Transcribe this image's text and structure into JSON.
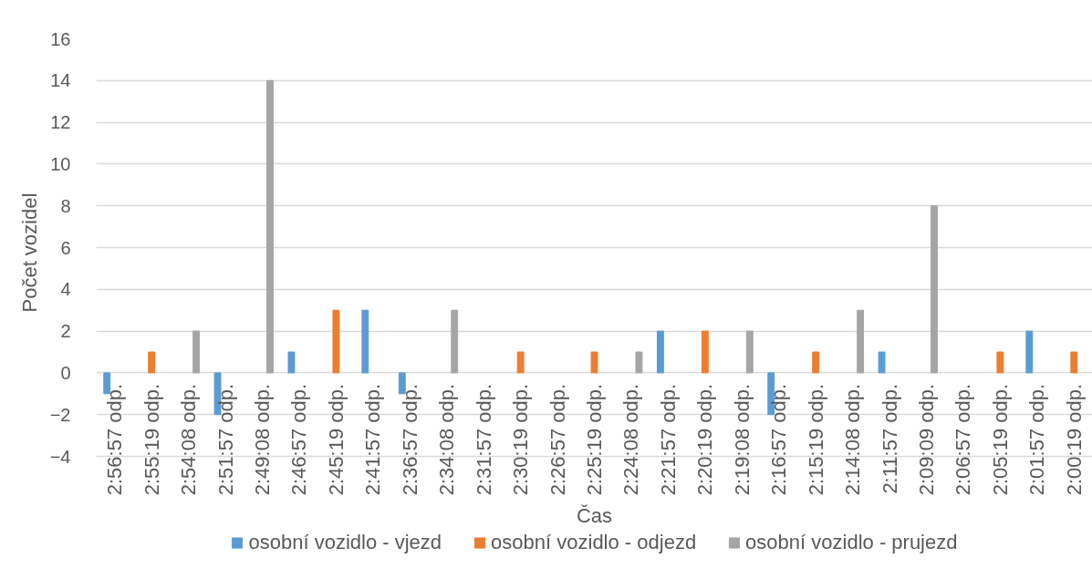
{
  "chart_data": {
    "type": "bar",
    "xlabel": "Čas",
    "ylabel": "Počet vozidel",
    "categories": [
      "2:56:57 odp.",
      "2:55:19 odp.",
      "2:54:08 odp.",
      "2:51:57 odp.",
      "2:49:08 odp.",
      "2:46:57 odp.",
      "2:45:19 odp.",
      "2:41:57 odp.",
      "2:36:57 odp.",
      "2:34:08 odp.",
      "2:31:57 odp.",
      "2:30:19 odp.",
      "2:26:57 odp.",
      "2:25:19 odp.",
      "2:24:08 odp.",
      "2:21:57 odp.",
      "2:20:19 odp.",
      "2:19:08 odp.",
      "2:16:57 odp.",
      "2:15:19 odp.",
      "2:14:08 odp.",
      "2:11:57 odp.",
      "2:09:09 odp.",
      "2:06:57 odp.",
      "2:05:19 odp.",
      "2:01:57 odp.",
      "2:00:19 odp."
    ],
    "series": [
      {
        "name": "osobní vozidlo - vjezd",
        "color": "#5b9bd5",
        "values": [
          -1,
          null,
          null,
          -2,
          null,
          1,
          null,
          3,
          -1,
          null,
          null,
          null,
          null,
          null,
          null,
          2,
          null,
          null,
          -2,
          null,
          null,
          1,
          null,
          null,
          null,
          2,
          null
        ]
      },
      {
        "name": "osobní vozidlo - odjezd",
        "color": "#ed7d31",
        "values": [
          null,
          1,
          null,
          null,
          null,
          null,
          3,
          null,
          null,
          null,
          null,
          1,
          null,
          1,
          null,
          null,
          2,
          null,
          null,
          1,
          null,
          null,
          null,
          null,
          1,
          null,
          1
        ]
      },
      {
        "name": "osobní vozidlo - prujezd",
        "color": "#a5a5a5",
        "values": [
          null,
          null,
          2,
          null,
          14,
          null,
          null,
          null,
          null,
          3,
          null,
          null,
          null,
          null,
          1,
          null,
          null,
          2,
          null,
          null,
          3,
          null,
          8,
          null,
          null,
          null,
          null
        ]
      }
    ],
    "ylim": [
      -4,
      16
    ],
    "yticks": [
      -4,
      -2,
      0,
      2,
      4,
      6,
      8,
      10,
      12,
      14,
      16
    ],
    "grid": "y",
    "legend": "bottom"
  }
}
